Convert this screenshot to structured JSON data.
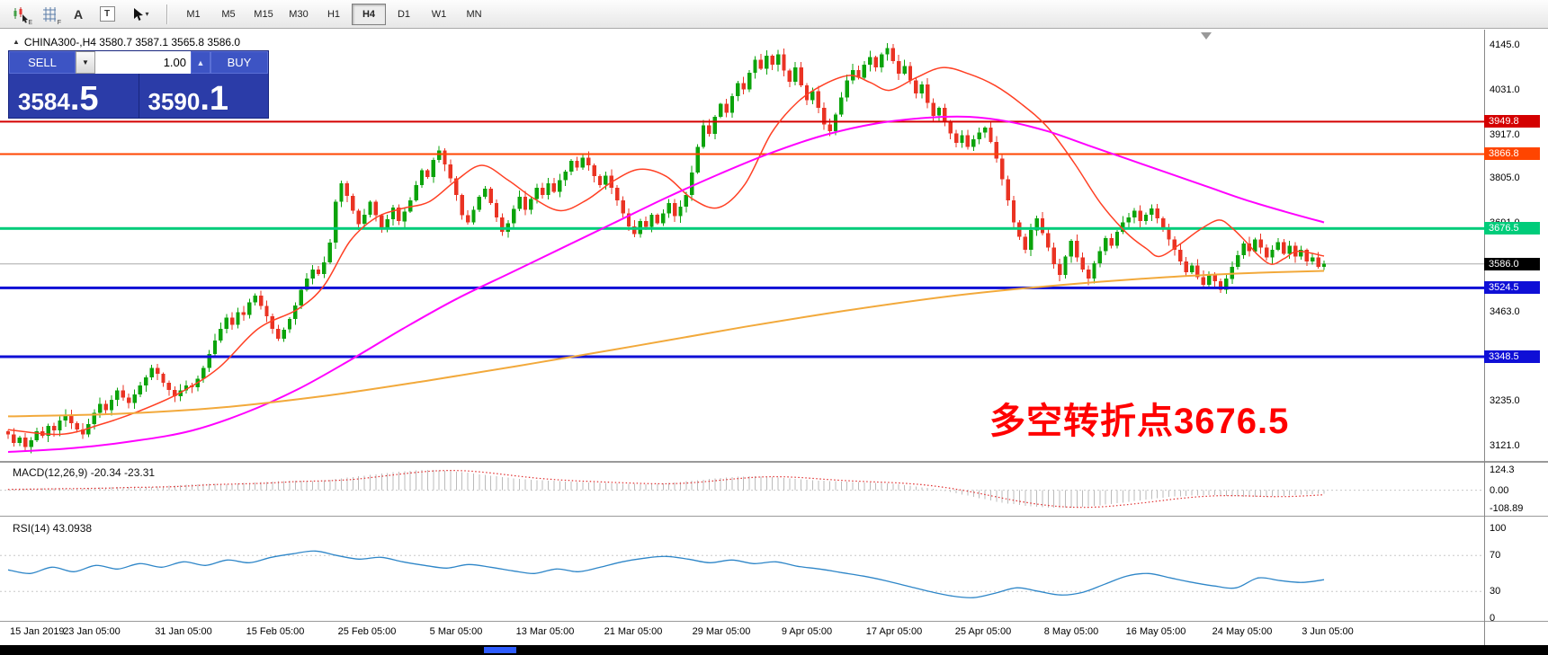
{
  "toolbar": {
    "icons": [
      {
        "name": "chart-cursor-icon",
        "glyph": "",
        "badge": "E"
      },
      {
        "name": "grid-icon",
        "glyph": "",
        "badge": "F"
      },
      {
        "name": "text-label-icon",
        "glyph": "A",
        "badge": ""
      },
      {
        "name": "text-box-icon",
        "glyph": "T",
        "badge": ""
      },
      {
        "name": "cursor-tool-icon",
        "glyph": "",
        "badge": "▾"
      }
    ],
    "timeframes": [
      "M1",
      "M5",
      "M15",
      "M30",
      "H1",
      "H4",
      "D1",
      "W1",
      "MN"
    ],
    "active_timeframe": "H4"
  },
  "chart_header": {
    "window_icon": "▲",
    "title": "CHINA300-,H4  3580.7 3587.1 3565.8 3586.0"
  },
  "trade_panel": {
    "sell_label": "SELL",
    "buy_label": "BUY",
    "volume": "1.00",
    "volume_down_glyph": "▼",
    "volume_up_glyph": "▲",
    "bid_main": "3584",
    "bid_big": ".5",
    "ask_main": "3590",
    "ask_big": ".1"
  },
  "annotation": {
    "text": "多空转折点3676.5",
    "color": "#FF0000"
  },
  "chart_data": {
    "type": "candlestick",
    "symbol": "CHINA300-",
    "period": "H4",
    "ohlc_display": {
      "open": 3580.7,
      "high": 3587.1,
      "low": 3565.8,
      "close": 3586.0
    },
    "bid": 3584.5,
    "ask": 3590.1,
    "visible_price_range": [
      3082,
      4185
    ],
    "price_axis_ticks": [
      "4145.0",
      "4031.0",
      "3917.0",
      "3805.0",
      "3691.0",
      "3463.0",
      "3235.0",
      "3121.0"
    ],
    "up_color": "#0BA30B",
    "down_color": "#EA3323",
    "closes": [
      3150,
      3128,
      3142,
      3118,
      3135,
      3158,
      3146,
      3172,
      3160,
      3185,
      3198,
      3178,
      3162,
      3150,
      3176,
      3205,
      3228,
      3212,
      3238,
      3262,
      3244,
      3230,
      3252,
      3275,
      3296,
      3320,
      3305,
      3282,
      3264,
      3248,
      3262,
      3275,
      3270,
      3292,
      3320,
      3355,
      3390,
      3420,
      3448,
      3430,
      3462,
      3455,
      3488,
      3505,
      3478,
      3452,
      3420,
      3395,
      3418,
      3445,
      3480,
      3520,
      3548,
      3572,
      3560,
      3590,
      3640,
      3745,
      3792,
      3760,
      3722,
      3688,
      3712,
      3745,
      3710,
      3675,
      3700,
      3730,
      3695,
      3720,
      3748,
      3788,
      3825,
      3808,
      3852,
      3876,
      3840,
      3805,
      3762,
      3710,
      3692,
      3724,
      3758,
      3778,
      3742,
      3705,
      3668,
      3690,
      3726,
      3758,
      3724,
      3752,
      3780,
      3762,
      3792,
      3770,
      3800,
      3822,
      3850,
      3832,
      3858,
      3838,
      3810,
      3788,
      3812,
      3780,
      3748,
      3715,
      3682,
      3662,
      3695,
      3680,
      3712,
      3690,
      3715,
      3742,
      3708,
      3732,
      3762,
      3820,
      3885,
      3940,
      3918,
      3962,
      3995,
      3972,
      4015,
      4048,
      4032,
      4075,
      4108,
      4085,
      4118,
      4095,
      4122,
      4080,
      4052,
      4088,
      4042,
      4005,
      4028,
      3985,
      3942,
      3925,
      3968,
      4012,
      4055,
      4082,
      4062,
      4095,
      4115,
      4088,
      4122,
      4138,
      4105,
      4072,
      4092,
      4055,
      4022,
      4045,
      3998,
      3965,
      3985,
      3948,
      3920,
      3895,
      3915,
      3885,
      3905,
      3922,
      3935,
      3898,
      3855,
      3802,
      3748,
      3692,
      3655,
      3622,
      3672,
      3702,
      3665,
      3628,
      3585,
      3558,
      3605,
      3645,
      3602,
      3572,
      3548,
      3588,
      3618,
      3652,
      3632,
      3668,
      3692,
      3705,
      3722,
      3695,
      3712,
      3728,
      3702,
      3678,
      3648,
      3622,
      3592,
      3565,
      3582,
      3552,
      3532,
      3558,
      3542,
      3520,
      3548,
      3578,
      3608,
      3638,
      3618,
      3648,
      3628,
      3602,
      3622,
      3642,
      3612,
      3632,
      3605,
      3622,
      3592,
      3602,
      3578,
      3586
    ],
    "levels": [
      {
        "label": "3949.8",
        "price": 3949.8,
        "color": "#D40000",
        "width": 2
      },
      {
        "label": "3866.8",
        "price": 3866.8,
        "color": "#FF4500",
        "width": 2
      },
      {
        "label": "3676.5",
        "price": 3676.5,
        "color": "#00CC7A",
        "width": 3
      },
      {
        "label": "3524.5",
        "price": 3524.5,
        "color": "#0F0FD6",
        "width": 3
      },
      {
        "label": "3348.5",
        "price": 3348.5,
        "color": "#0F0FD6",
        "width": 3
      }
    ],
    "current_price": {
      "label": "3586.0",
      "value": 3586.0,
      "line_color": "#A9A9A9",
      "label_bg": "#000000"
    },
    "moving_averages": [
      {
        "name": "ma-fast",
        "color": "#FF4024",
        "width": 1.5,
        "points": [
          [
            0.0,
            3162
          ],
          [
            0.04,
            3150
          ],
          [
            0.07,
            3175
          ],
          [
            0.1,
            3210
          ],
          [
            0.13,
            3255
          ],
          [
            0.16,
            3320
          ],
          [
            0.19,
            3420
          ],
          [
            0.22,
            3470
          ],
          [
            0.24,
            3530
          ],
          [
            0.26,
            3645
          ],
          [
            0.28,
            3705
          ],
          [
            0.3,
            3728
          ],
          [
            0.32,
            3745
          ],
          [
            0.34,
            3798
          ],
          [
            0.36,
            3838
          ],
          [
            0.38,
            3800
          ],
          [
            0.4,
            3752
          ],
          [
            0.42,
            3722
          ],
          [
            0.44,
            3750
          ],
          [
            0.46,
            3798
          ],
          [
            0.48,
            3828
          ],
          [
            0.5,
            3810
          ],
          [
            0.52,
            3752
          ],
          [
            0.54,
            3730
          ],
          [
            0.56,
            3790
          ],
          [
            0.58,
            3920
          ],
          [
            0.6,
            4000
          ],
          [
            0.62,
            4045
          ],
          [
            0.64,
            4068
          ],
          [
            0.655,
            4050
          ],
          [
            0.67,
            4030
          ],
          [
            0.69,
            4062
          ],
          [
            0.71,
            4088
          ],
          [
            0.73,
            4072
          ],
          [
            0.75,
            4042
          ],
          [
            0.77,
            3995
          ],
          [
            0.79,
            3935
          ],
          [
            0.81,
            3845
          ],
          [
            0.83,
            3742
          ],
          [
            0.85,
            3665
          ],
          [
            0.865,
            3625
          ],
          [
            0.875,
            3605
          ],
          [
            0.89,
            3635
          ],
          [
            0.905,
            3672
          ],
          [
            0.92,
            3698
          ],
          [
            0.93,
            3678
          ],
          [
            0.94,
            3645
          ],
          [
            0.95,
            3608
          ],
          [
            0.96,
            3585
          ],
          [
            0.97,
            3600
          ],
          [
            0.98,
            3618
          ],
          [
            1.0,
            3606
          ]
        ]
      },
      {
        "name": "ma-mid",
        "color": "#FF00FF",
        "width": 2,
        "points": [
          [
            0.0,
            3105
          ],
          [
            0.05,
            3115
          ],
          [
            0.1,
            3135
          ],
          [
            0.14,
            3160
          ],
          [
            0.18,
            3205
          ],
          [
            0.22,
            3265
          ],
          [
            0.26,
            3340
          ],
          [
            0.3,
            3420
          ],
          [
            0.34,
            3495
          ],
          [
            0.38,
            3560
          ],
          [
            0.42,
            3625
          ],
          [
            0.46,
            3690
          ],
          [
            0.5,
            3755
          ],
          [
            0.54,
            3815
          ],
          [
            0.58,
            3870
          ],
          [
            0.62,
            3915
          ],
          [
            0.66,
            3945
          ],
          [
            0.7,
            3960
          ],
          [
            0.73,
            3962
          ],
          [
            0.76,
            3950
          ],
          [
            0.79,
            3925
          ],
          [
            0.82,
            3890
          ],
          [
            0.85,
            3855
          ],
          [
            0.88,
            3820
          ],
          [
            0.91,
            3785
          ],
          [
            0.94,
            3750
          ],
          [
            0.97,
            3720
          ],
          [
            1.0,
            3692
          ]
        ]
      },
      {
        "name": "ma-slow",
        "color": "#F2A93B",
        "width": 2,
        "points": [
          [
            0.0,
            3196
          ],
          [
            0.08,
            3202
          ],
          [
            0.16,
            3218
          ],
          [
            0.24,
            3248
          ],
          [
            0.32,
            3288
          ],
          [
            0.4,
            3332
          ],
          [
            0.48,
            3378
          ],
          [
            0.56,
            3425
          ],
          [
            0.64,
            3468
          ],
          [
            0.72,
            3505
          ],
          [
            0.8,
            3532
          ],
          [
            0.88,
            3552
          ],
          [
            0.94,
            3562
          ],
          [
            1.0,
            3568
          ]
        ]
      }
    ],
    "macd": {
      "label": "MACD(12,26,9) -20.34 -23.31",
      "axis_ticks": [
        "124.3",
        "0.00",
        "-108.89"
      ],
      "histogram_color": "#BBBBBB",
      "signal_color": "#E03030",
      "values": [
        5,
        8,
        12,
        9,
        15,
        20,
        17,
        24,
        32,
        40,
        36,
        45,
        52,
        58,
        55,
        68,
        85,
        100,
        115,
        124,
        118,
        105,
        88,
        72,
        62,
        56,
        50,
        45,
        40,
        36,
        42,
        55,
        68,
        80,
        86,
        78,
        68,
        58,
        52,
        48,
        42,
        30,
        12,
        -12,
        -40,
        -68,
        -88,
        -102,
        -108,
        -100,
        -88,
        -72,
        -55,
        -40,
        -32,
        -30,
        -38,
        -42,
        -35,
        -27,
        -20
      ]
    },
    "rsi": {
      "label": "RSI(14) 43.0938",
      "axis_ticks": [
        "100",
        "70",
        "30",
        "0"
      ],
      "levels": [
        70,
        30
      ],
      "line_color": "#2E86C8",
      "values": [
        54,
        50,
        57,
        52,
        59,
        55,
        61,
        57,
        63,
        59,
        65,
        62,
        68,
        72,
        75,
        70,
        66,
        68,
        63,
        59,
        56,
        60,
        57,
        53,
        50,
        55,
        52,
        57,
        63,
        67,
        69,
        66,
        62,
        65,
        61,
        63,
        58,
        55,
        51,
        47,
        42,
        36,
        30,
        25,
        23,
        28,
        34,
        30,
        26,
        29,
        38,
        47,
        50,
        45,
        40,
        36,
        34,
        45,
        42,
        40,
        43
      ]
    },
    "time_axis": [
      "15 Jan 2019",
      "23 Jan 05:00",
      "31 Jan 05:00",
      "15 Feb 05:00",
      "25 Feb 05:00",
      "5 Mar 05:00",
      "13 Mar 05:00",
      "21 Mar 05:00",
      "29 Mar 05:00",
      "9 Apr 05:00",
      "17 Apr 05:00",
      "25 Apr 05:00",
      "8 May 05:00",
      "16 May 05:00",
      "24 May 05:00",
      "3 Jun 05:00"
    ]
  }
}
